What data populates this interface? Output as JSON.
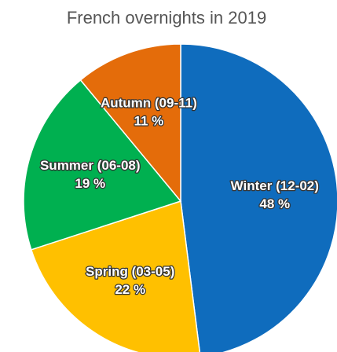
{
  "chart_data": {
    "type": "pie",
    "title": "French overnights in 2019",
    "categories": [
      "Winter (12-02)",
      "Spring (03-05)",
      "Summer (06-08)",
      "Autumn (09-11)"
    ],
    "values": [
      48,
      22,
      19,
      11
    ],
    "value_labels": [
      "48 %",
      "22 %",
      "19 %",
      "11 %"
    ],
    "colors": [
      "#0f6cbd",
      "#ffc000",
      "#00b050",
      "#e46c0a"
    ]
  }
}
